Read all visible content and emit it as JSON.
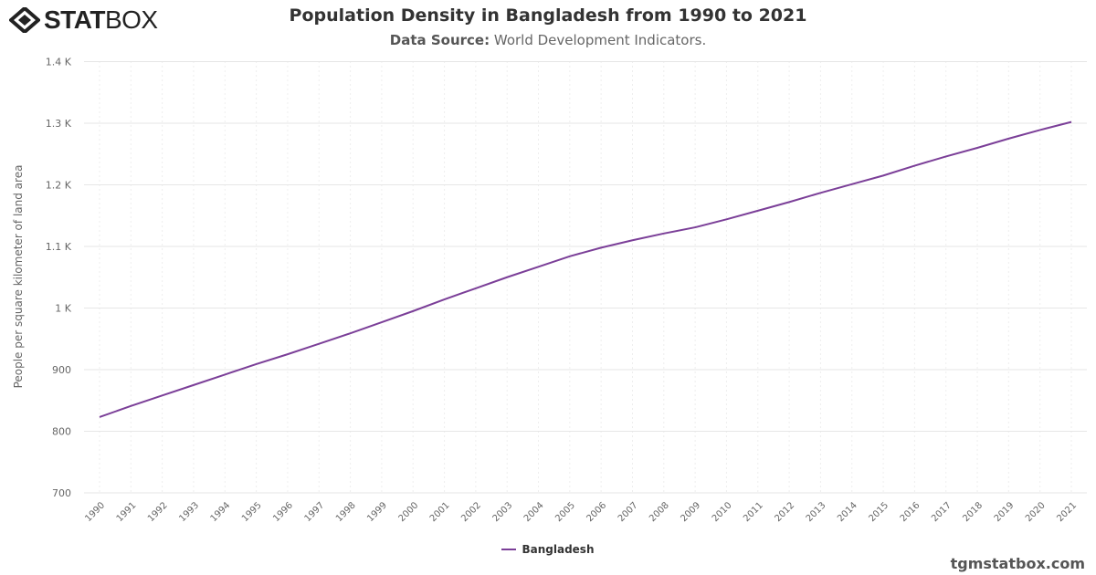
{
  "logo": {
    "bold": "STAT",
    "light": "BOX"
  },
  "header": {
    "title": "Population Density in Bangladesh from 1990 to 2021",
    "subtitle_label": "Data Source:",
    "subtitle_value": " World Development Indicators."
  },
  "credit": "tgmstatbox.com",
  "colors": {
    "series": "#7b3f98",
    "grid": "#e6e6e6"
  },
  "chart_data": {
    "type": "line",
    "title": "Population Density in Bangladesh from 1990 to 2021",
    "ylabel": "People per square kilometer of land area",
    "xlabel": "",
    "ylim": [
      700,
      1400
    ],
    "yticks": [
      700,
      800,
      900,
      1000,
      1100,
      1200,
      1300,
      1400
    ],
    "ytick_labels": [
      "700",
      "800",
      "900",
      "1 K",
      "1.1 K",
      "1.2 K",
      "1.3 K",
      "1.4 K"
    ],
    "grid": true,
    "legend": "bottom-center",
    "x": [
      1990,
      1991,
      1992,
      1993,
      1994,
      1995,
      1996,
      1997,
      1998,
      1999,
      2000,
      2001,
      2002,
      2003,
      2004,
      2005,
      2006,
      2007,
      2008,
      2009,
      2010,
      2011,
      2012,
      2013,
      2014,
      2015,
      2016,
      2017,
      2018,
      2019,
      2020,
      2021
    ],
    "series": [
      {
        "name": "Bangladesh",
        "values": [
          823,
          841,
          858,
          875,
          892,
          909,
          925,
          942,
          959,
          977,
          995,
          1014,
          1032,
          1050,
          1067,
          1084,
          1098,
          1110,
          1121,
          1131,
          1144,
          1158,
          1172,
          1187,
          1201,
          1215,
          1231,
          1246,
          1260,
          1275,
          1289,
          1302
        ]
      }
    ]
  }
}
